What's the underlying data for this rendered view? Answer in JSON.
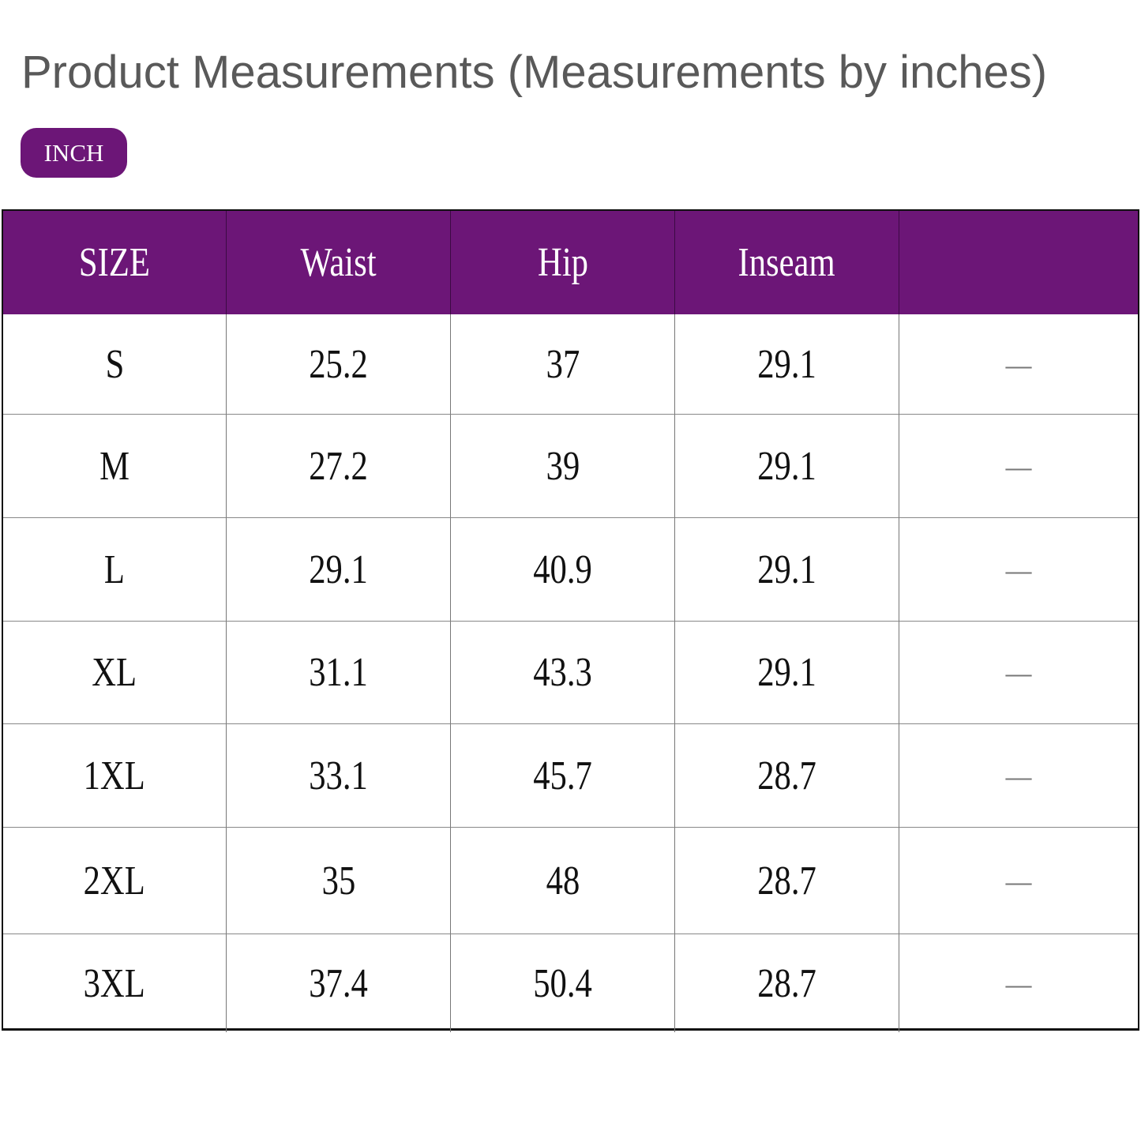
{
  "title": "Product Measurements (Measurements by inches)",
  "unit_badge": "INCH",
  "colors": {
    "accent": "#6c1677",
    "title": "#595959"
  },
  "table": {
    "headers": [
      "SIZE",
      "Waist",
      "Hip",
      "Inseam",
      ""
    ],
    "rows": [
      [
        "S",
        "25.2",
        "37",
        "29.1",
        "—"
      ],
      [
        "M",
        "27.2",
        "39",
        "29.1",
        "—"
      ],
      [
        "L",
        "29.1",
        "40.9",
        "29.1",
        "—"
      ],
      [
        "XL",
        "31.1",
        "43.3",
        "29.1",
        "—"
      ],
      [
        "1XL",
        "33.1",
        "45.7",
        "28.7",
        "—"
      ],
      [
        "2XL",
        "35",
        "48",
        "28.7",
        "—"
      ],
      [
        "3XL",
        "37.4",
        "50.4",
        "28.7",
        "—"
      ]
    ]
  }
}
